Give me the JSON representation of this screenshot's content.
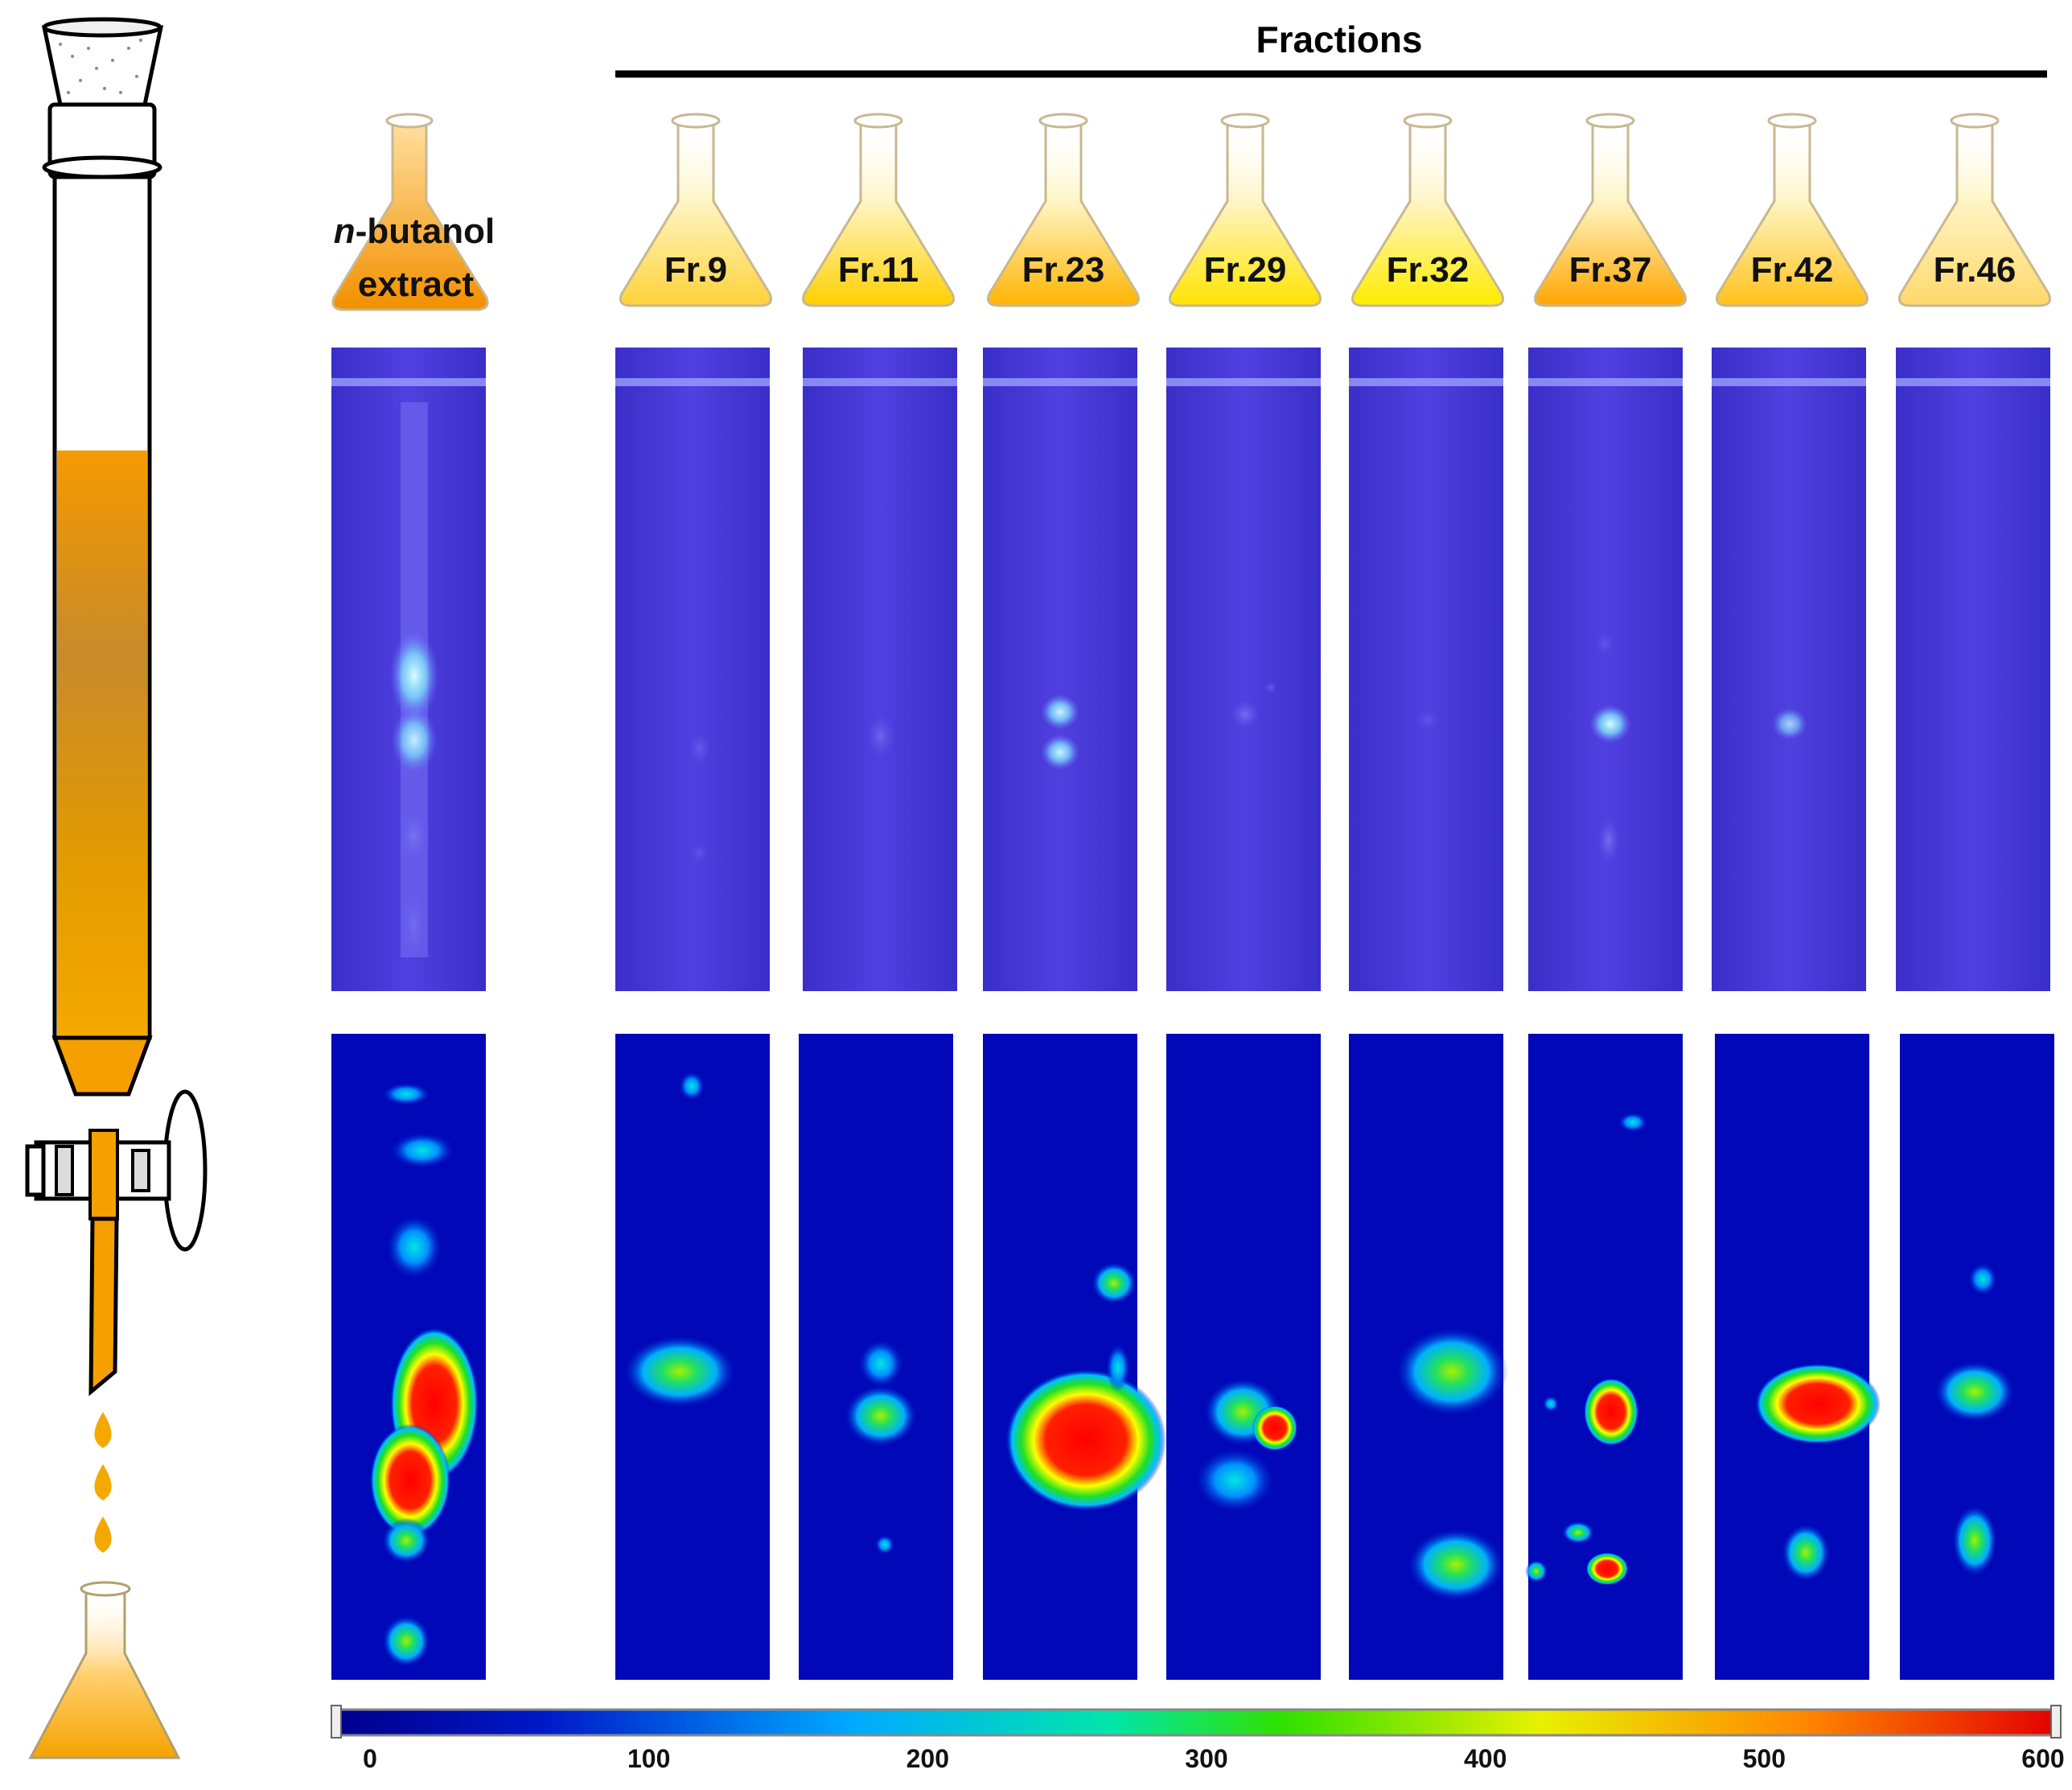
{
  "header": {
    "title": "Fractions"
  },
  "extract": {
    "italic_prefix": "n",
    "line1_rest": "-butanol",
    "line2": "extract"
  },
  "flasks": [
    {
      "label": "Fr.9",
      "tint": "#ffd23a"
    },
    {
      "label": "Fr.11",
      "tint": "#ffd000"
    },
    {
      "label": "Fr.23",
      "tint": "#ffb400"
    },
    {
      "label": "Fr.29",
      "tint": "#ffe400"
    },
    {
      "label": "Fr.32",
      "tint": "#ffec00"
    },
    {
      "label": "Fr.37",
      "tint": "#ffa600"
    },
    {
      "label": "Fr.42",
      "tint": "#ffc21a"
    },
    {
      "label": "Fr.46",
      "tint": "#ffd86a"
    }
  ],
  "colorbar": {
    "ticks": [
      "0",
      "100",
      "200",
      "300",
      "400",
      "500",
      "600"
    ],
    "min": 0,
    "max": 600
  },
  "colors": {
    "extract": "#f59b00",
    "tlc_plate": "#4a3ad8",
    "heatmap_bg": "#0000b4"
  },
  "icons": [
    "chromatography-column-icon",
    "erlenmeyer-flask-icon",
    "droplet-icon"
  ]
}
